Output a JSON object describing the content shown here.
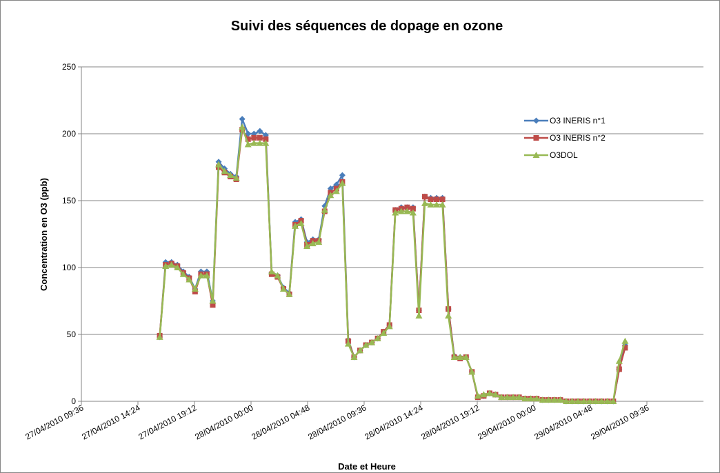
{
  "chart_data": {
    "type": "line",
    "title": "Suivi des séquences de dopage en ozone",
    "x_label": "Date et Heure",
    "y_label": "Concentration en O3 (ppb)",
    "x": [
      "27/04/2010 16:15",
      "27/04/2010 16:45",
      "27/04/2010 17:15",
      "27/04/2010 17:45",
      "27/04/2010 18:15",
      "27/04/2010 18:45",
      "27/04/2010 19:15",
      "27/04/2010 19:45",
      "27/04/2010 20:15",
      "27/04/2010 20:45",
      "27/04/2010 21:15",
      "27/04/2010 21:45",
      "27/04/2010 22:15",
      "27/04/2010 22:45",
      "27/04/2010 23:15",
      "27/04/2010 23:45",
      "28/04/2010 00:15",
      "28/04/2010 00:45",
      "28/04/2010 01:15",
      "28/04/2010 01:45",
      "28/04/2010 02:15",
      "28/04/2010 02:45",
      "28/04/2010 03:15",
      "28/04/2010 03:45",
      "28/04/2010 04:15",
      "28/04/2010 04:45",
      "28/04/2010 05:15",
      "28/04/2010 05:45",
      "28/04/2010 06:15",
      "28/04/2010 06:45",
      "28/04/2010 07:15",
      "28/04/2010 07:45",
      "28/04/2010 08:15",
      "28/04/2010 08:45",
      "28/04/2010 09:15",
      "28/04/2010 09:45",
      "28/04/2010 10:15",
      "28/04/2010 10:45",
      "28/04/2010 11:15",
      "28/04/2010 11:45",
      "28/04/2010 12:15",
      "28/04/2010 12:45",
      "28/04/2010 13:15",
      "28/04/2010 13:45",
      "28/04/2010 14:15",
      "28/04/2010 14:45",
      "28/04/2010 15:15",
      "28/04/2010 15:45",
      "28/04/2010 16:15",
      "28/04/2010 16:45",
      "28/04/2010 17:15",
      "28/04/2010 17:45",
      "28/04/2010 18:15",
      "28/04/2010 18:45",
      "28/04/2010 19:15",
      "28/04/2010 19:45",
      "28/04/2010 20:15",
      "28/04/2010 20:45",
      "28/04/2010 21:15",
      "28/04/2010 21:45",
      "28/04/2010 22:15",
      "28/04/2010 22:45",
      "28/04/2010 23:15",
      "28/04/2010 23:45",
      "29/04/2010 00:15",
      "29/04/2010 00:45",
      "29/04/2010 01:15",
      "29/04/2010 01:45",
      "29/04/2010 02:15",
      "29/04/2010 02:45",
      "29/04/2010 03:15",
      "29/04/2010 03:45",
      "29/04/2010 04:15",
      "29/04/2010 04:45",
      "29/04/2010 05:15",
      "29/04/2010 05:45",
      "29/04/2010 06:15",
      "29/04/2010 06:45",
      "29/04/2010 07:15",
      "29/04/2010 07:45"
    ],
    "series": [
      {
        "name": "O3 INERIS n°1",
        "color": "#4a7ebb",
        "marker": "diamond",
        "values": [
          48,
          104,
          104,
          102,
          97,
          93,
          84,
          97,
          97,
          75,
          179,
          174,
          170,
          168,
          211,
          200,
          200,
          202,
          199,
          96,
          94,
          85,
          81,
          134,
          136,
          119,
          121,
          121,
          146,
          159,
          162,
          169,
          46,
          33,
          38,
          42,
          44,
          47,
          52,
          57,
          143,
          145,
          145,
          145,
          68,
          153,
          152,
          152,
          152,
          69,
          34,
          33,
          33,
          22,
          3,
          4,
          6,
          5,
          3,
          3,
          3,
          3,
          2,
          2,
          2,
          1,
          1,
          1,
          1,
          0,
          0,
          0,
          0,
          0,
          0,
          0,
          0,
          0,
          24,
          42
        ]
      },
      {
        "name": "O3 INERIS n°2",
        "color": "#be4b48",
        "marker": "square",
        "values": [
          49,
          102,
          103,
          101,
          96,
          92,
          82,
          95,
          95,
          72,
          175,
          171,
          168,
          166,
          203,
          196,
          197,
          197,
          196,
          95,
          93,
          84,
          80,
          132,
          135,
          117,
          120,
          120,
          142,
          156,
          159,
          164,
          45,
          33,
          38,
          42,
          44,
          47,
          52,
          57,
          143,
          144,
          145,
          144,
          68,
          153,
          151,
          151,
          151,
          69,
          33,
          32,
          33,
          22,
          3,
          4,
          6,
          5,
          3,
          3,
          3,
          3,
          2,
          2,
          2,
          1,
          1,
          1,
          1,
          0,
          0,
          0,
          0,
          0,
          0,
          0,
          0,
          0,
          24,
          40
        ]
      },
      {
        "name": "O3DOL",
        "color": "#98b954",
        "marker": "triangle",
        "values": [
          48,
          101,
          102,
          100,
          95,
          91,
          84,
          94,
          94,
          75,
          177,
          172,
          169,
          167,
          205,
          192,
          193,
          193,
          193,
          97,
          94,
          84,
          80,
          131,
          133,
          116,
          118,
          119,
          143,
          154,
          157,
          163,
          43,
          33,
          38,
          42,
          44,
          47,
          51,
          56,
          141,
          142,
          142,
          141,
          64,
          148,
          147,
          147,
          147,
          64,
          33,
          33,
          33,
          22,
          4,
          5,
          6,
          5,
          3,
          3,
          3,
          3,
          2,
          2,
          2,
          1,
          1,
          1,
          1,
          0,
          0,
          0,
          0,
          0,
          0,
          0,
          0,
          0,
          30,
          45
        ]
      }
    ],
    "xlim": [
      "27/04/2010 09:36",
      "29/04/2010 14:24"
    ],
    "xticks": [
      "27/04/2010 09:36",
      "27/04/2010 14:24",
      "27/04/2010 19:12",
      "28/04/2010 00:00",
      "28/04/2010 04:48",
      "28/04/2010 09:36",
      "28/04/2010 14:24",
      "28/04/2010 19:12",
      "29/04/2010 00:00",
      "29/04/2010 04:48",
      "29/04/2010 09:36"
    ],
    "ylim": [
      0,
      250
    ],
    "yticks": [
      0,
      50,
      100,
      150,
      200,
      250
    ],
    "grid": true,
    "legend": "right"
  }
}
